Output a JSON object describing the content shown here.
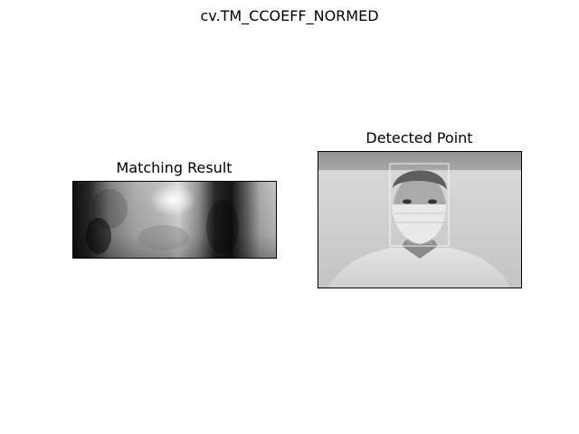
{
  "figure": {
    "suptitle": "cv.TM_CCOEFF_NORMED"
  },
  "panels": {
    "matching_result": {
      "title": "Matching Result",
      "image": "grayscale-correlation-heatmap"
    },
    "detected_point": {
      "title": "Detected Point",
      "image": "grayscale-webcam-photo-person-with-face-mask",
      "marker": "rectangle-around-face"
    }
  }
}
